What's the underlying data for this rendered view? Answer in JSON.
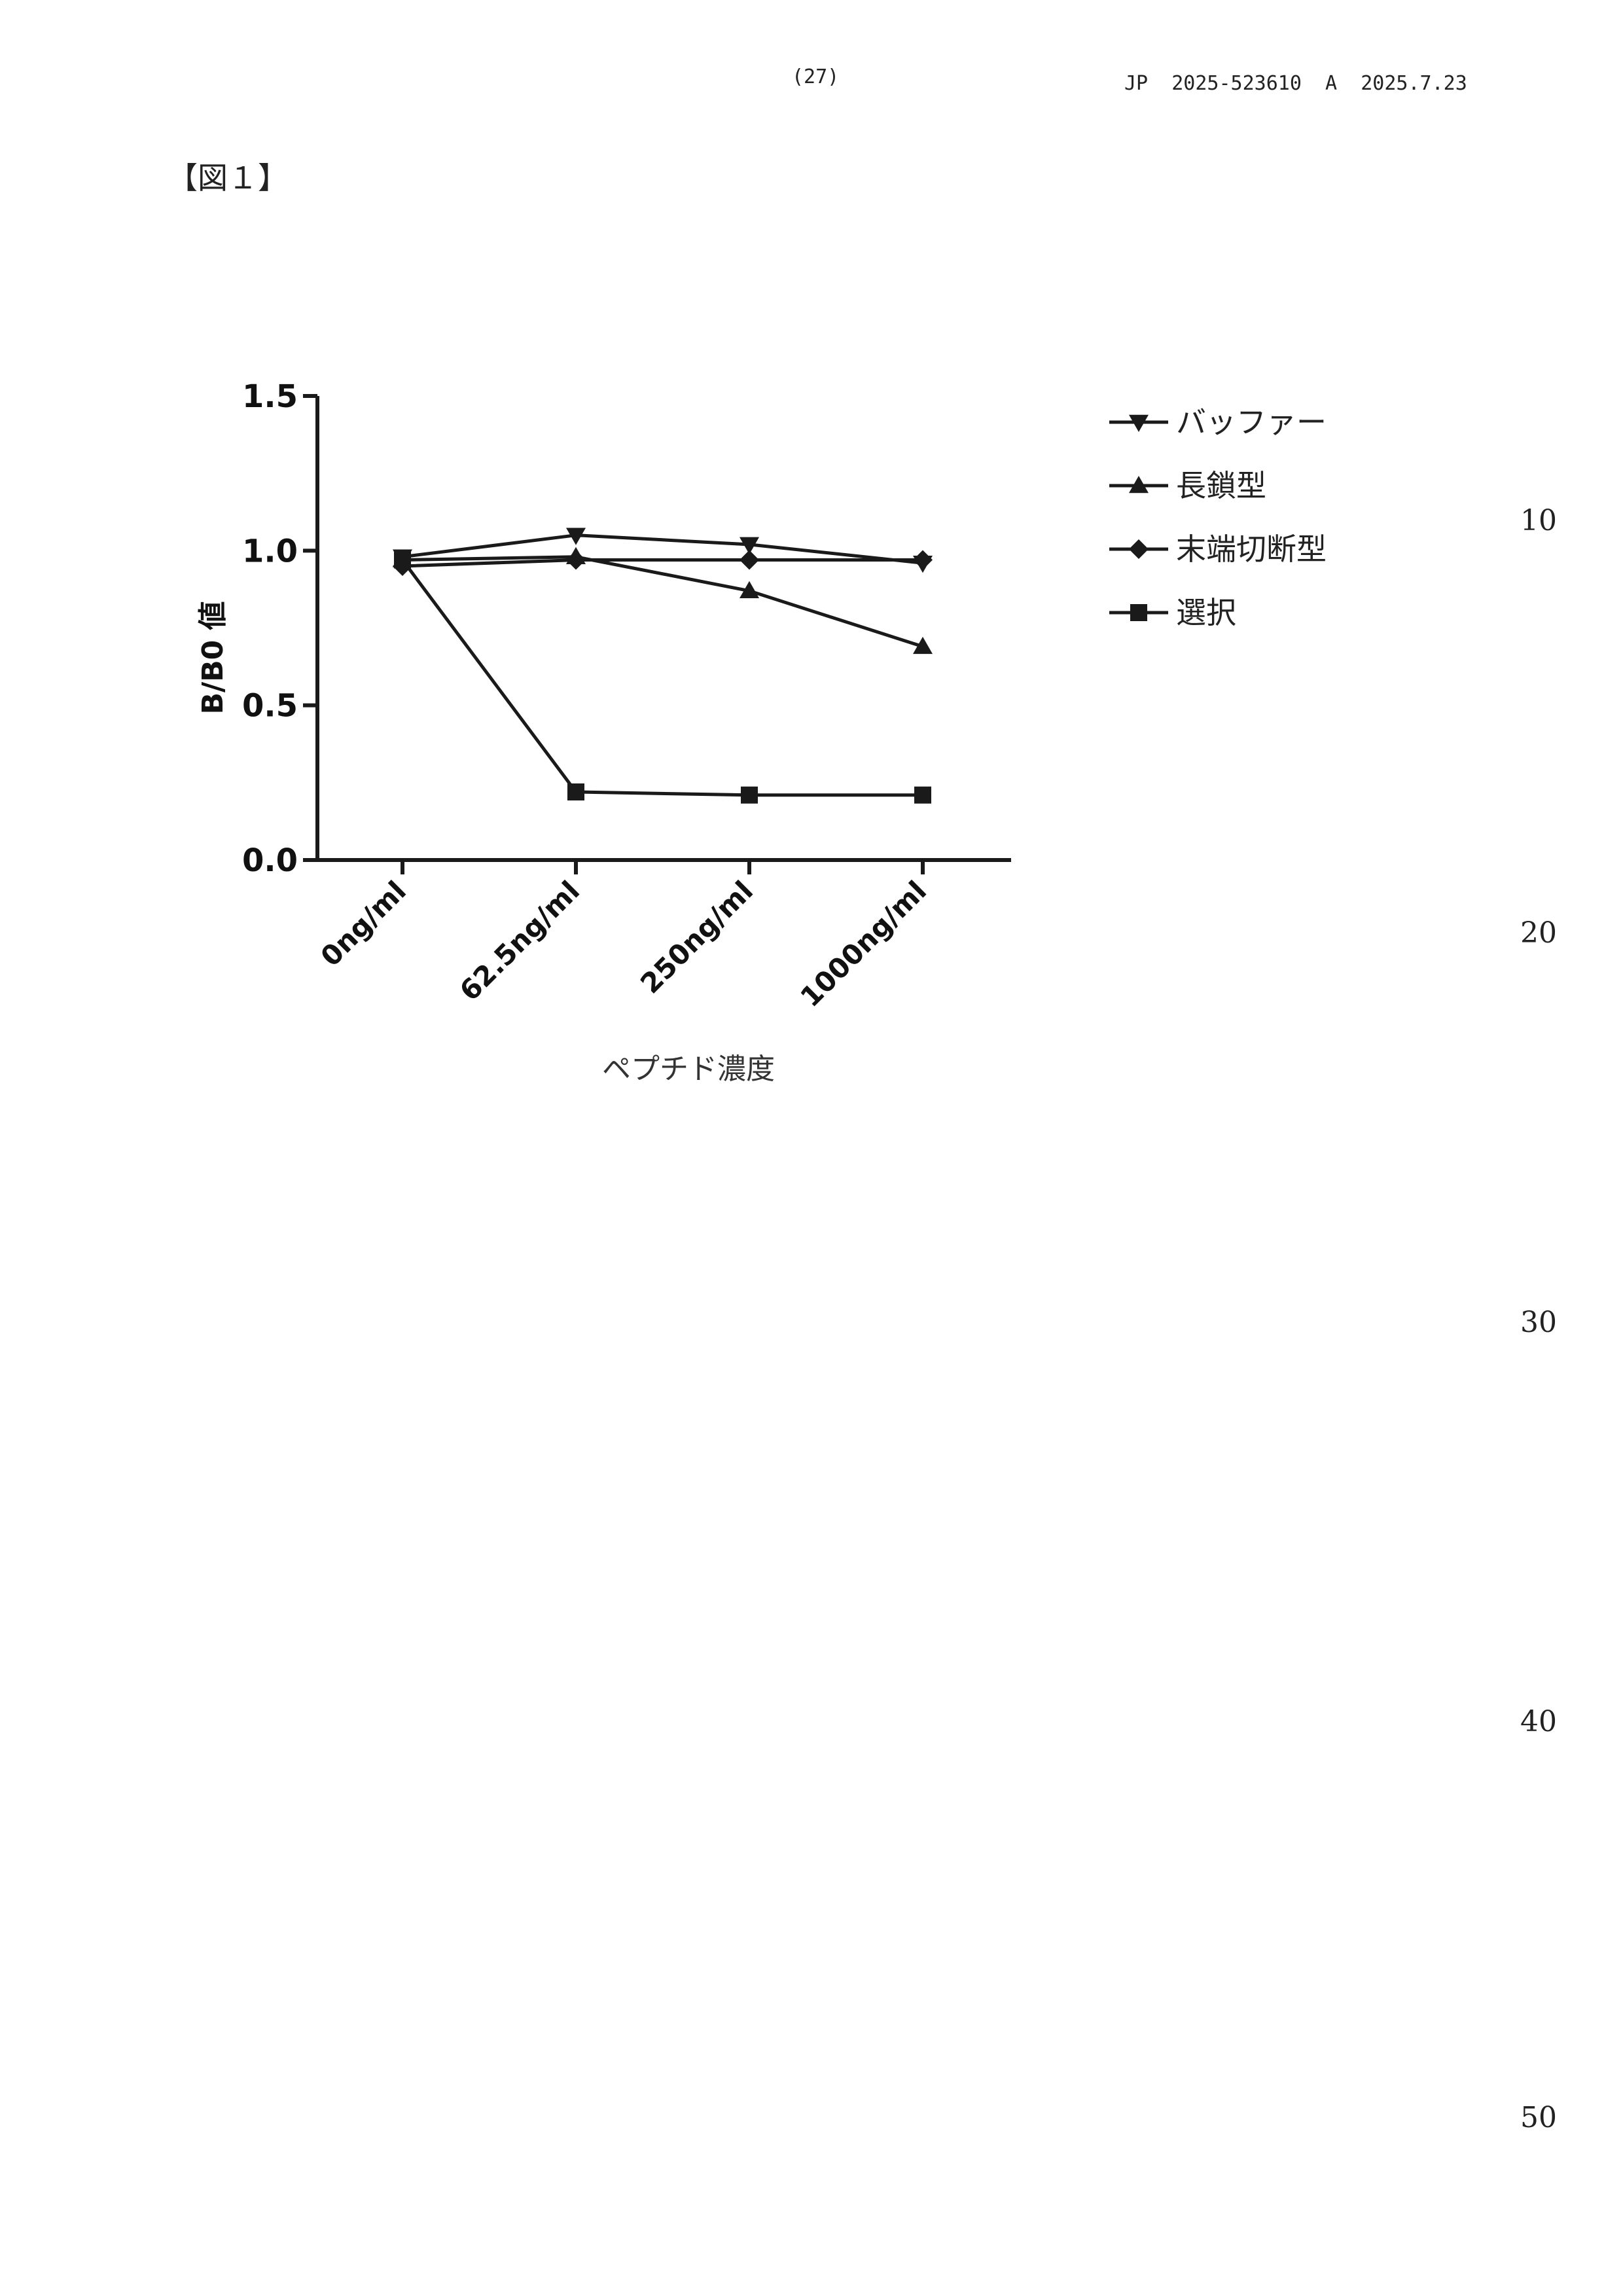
{
  "header": {
    "page_number": "(27)",
    "publication": "JP  2025-523610  A  2025.7.23"
  },
  "figure_label": "【図１】",
  "line_numbers": [
    "10",
    "20",
    "30",
    "40",
    "50"
  ],
  "chart_data": {
    "type": "line",
    "title": "",
    "xlabel": "ペプチド濃度",
    "ylabel": "B/B0 値",
    "categories": [
      "0ng/ml",
      "62.5ng/ml",
      "250ng/ml",
      "1000ng/ml"
    ],
    "y_ticks": [
      "0.0",
      "0.5",
      "1.0",
      "1.5"
    ],
    "ylim": [
      0,
      1.5
    ],
    "grid": false,
    "legend_position": "right",
    "series": [
      {
        "name": "バッファー",
        "marker": "triangle-down",
        "values": [
          0.98,
          1.05,
          1.02,
          0.96
        ]
      },
      {
        "name": "長鎖型",
        "marker": "triangle-up",
        "values": [
          0.97,
          0.98,
          0.87,
          0.69
        ]
      },
      {
        "name": "末端切断型",
        "marker": "diamond",
        "values": [
          0.95,
          0.97,
          0.97,
          0.97
        ]
      },
      {
        "name": "選択",
        "marker": "square",
        "values": [
          0.97,
          0.22,
          0.21,
          0.21
        ]
      }
    ],
    "color": "#1a1a1a"
  }
}
